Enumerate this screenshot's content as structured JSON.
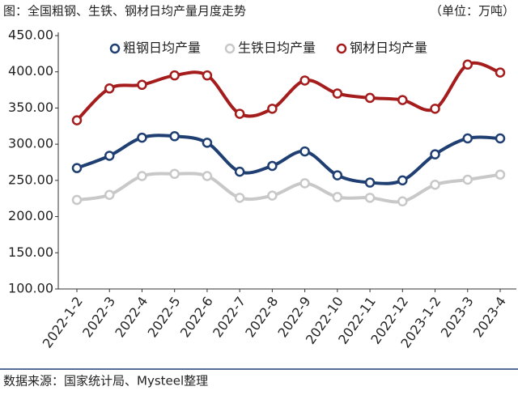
{
  "chart_data": {
    "type": "line",
    "title": "图：全国粗钢、生铁、钢材日均产量月度走势",
    "subtitle": "（单位：万吨）",
    "source": "数据来源：国家统计局、Mysteel整理",
    "categories": [
      "2022-1-2",
      "2022-3",
      "2022-4",
      "2022-5",
      "2022-6",
      "2022-7",
      "2022-8",
      "2022-9",
      "2022-10",
      "2022-11",
      "2022-12",
      "2023-1-2",
      "2023-3",
      "2023-4"
    ],
    "series": [
      {
        "name": "粗钢日均产量",
        "color": "#1f3f73",
        "values": [
          267,
          284,
          309,
          311,
          302,
          262,
          270,
          290,
          257,
          247,
          250,
          286,
          308,
          308
        ]
      },
      {
        "name": "生铁日均产量",
        "color": "#c8c8c8",
        "values": [
          223,
          230,
          256,
          259,
          256,
          226,
          229,
          246,
          227,
          226,
          221,
          244,
          251,
          258
        ]
      },
      {
        "name": "钢材日均产量",
        "color": "#a51c1c",
        "values": [
          333,
          377,
          382,
          395,
          395,
          342,
          349,
          388,
          370,
          364,
          361,
          349,
          410,
          399
        ]
      }
    ],
    "ylim": [
      100,
      450
    ],
    "yticks": [
      {
        "value": 100,
        "label": "100.00"
      },
      {
        "value": 150,
        "label": "150.00"
      },
      {
        "value": 200,
        "label": "200.00"
      },
      {
        "value": 250,
        "label": "250.00"
      },
      {
        "value": 300,
        "label": "300.00"
      },
      {
        "value": 350,
        "label": "350.00"
      },
      {
        "value": 400,
        "label": "400.00"
      },
      {
        "value": 450,
        "label": "450.00"
      }
    ],
    "grid": false,
    "legend": "top"
  }
}
